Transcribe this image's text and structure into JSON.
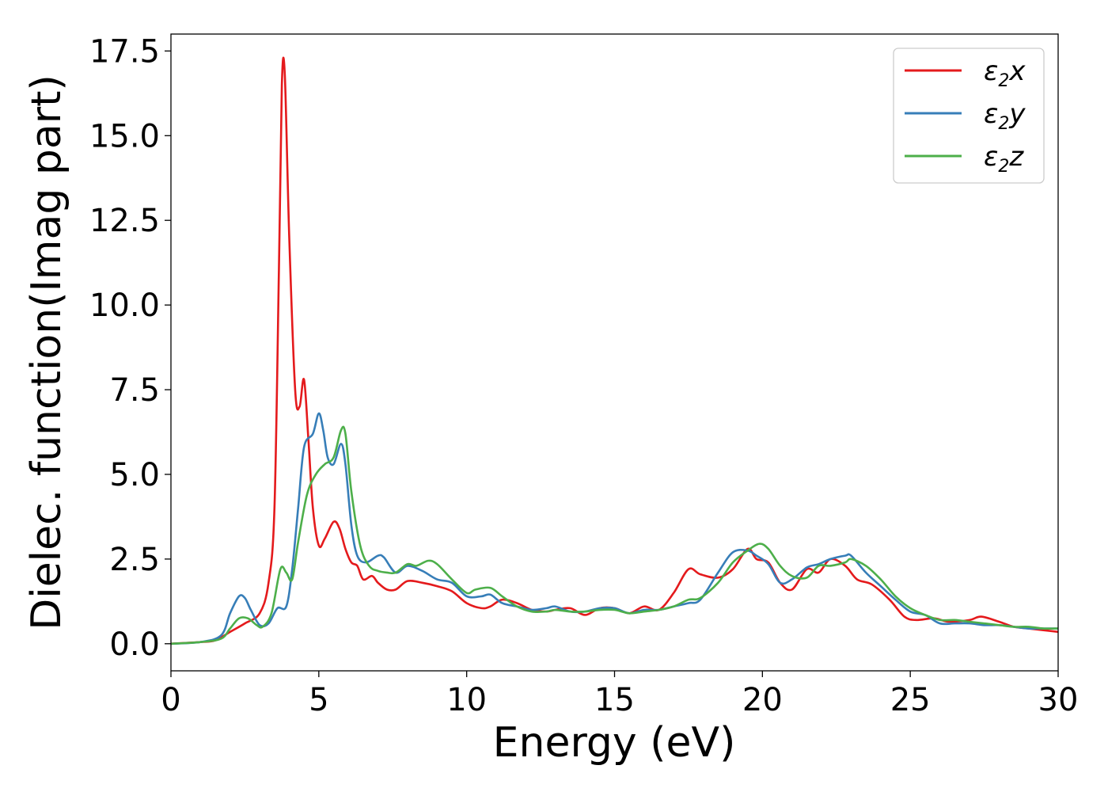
{
  "chart_data": {
    "type": "line",
    "xlabel": "Energy (eV)",
    "ylabel": "Dielec. function(Imag part)",
    "xlim": [
      0,
      30
    ],
    "ylim": [
      -0.8,
      18.0
    ],
    "xticks": [
      0,
      5,
      10,
      15,
      20,
      25,
      30
    ],
    "xtick_labels": [
      "0",
      "5",
      "10",
      "15",
      "20",
      "25",
      "30"
    ],
    "yticks": [
      0.0,
      2.5,
      5.0,
      7.5,
      10.0,
      12.5,
      15.0,
      17.5
    ],
    "ytick_labels": [
      "0.0",
      "2.5",
      "5.0",
      "7.5",
      "10.0",
      "12.5",
      "15.0",
      "17.5"
    ],
    "grid": false,
    "legend_position": "top-right",
    "series": [
      {
        "name": "ε2x",
        "name_base": "ε",
        "name_sub": "2",
        "name_tail": "x",
        "color": "#e41a1c",
        "x": [
          0,
          1,
          1.5,
          2,
          2.5,
          3,
          3.3,
          3.5,
          3.65,
          3.75,
          3.85,
          4.0,
          4.2,
          4.35,
          4.5,
          4.65,
          4.8,
          5.0,
          5.2,
          5.5,
          5.7,
          5.9,
          6.1,
          6.3,
          6.5,
          6.8,
          7.0,
          7.3,
          7.6,
          8.0,
          8.5,
          9.0,
          9.5,
          10.0,
          10.5,
          10.8,
          11.2,
          11.7,
          12.2,
          12.7,
          13.0,
          13.5,
          14.0,
          14.5,
          15.0,
          15.5,
          16.0,
          16.5,
          17.0,
          17.5,
          17.9,
          18.5,
          19.0,
          19.5,
          19.8,
          20.2,
          20.6,
          21.0,
          21.5,
          21.9,
          22.3,
          22.8,
          23.2,
          23.7,
          24.3,
          24.8,
          25.2,
          25.8,
          26.3,
          27.0,
          27.4,
          28.0,
          28.5,
          29.0,
          29.5,
          30.0
        ],
        "y": [
          0.0,
          0.05,
          0.1,
          0.35,
          0.6,
          0.9,
          1.8,
          4.0,
          11.0,
          16.5,
          16.8,
          12.0,
          7.5,
          7.0,
          7.8,
          6.0,
          4.0,
          2.9,
          3.1,
          3.6,
          3.4,
          2.8,
          2.4,
          2.3,
          1.9,
          2.0,
          1.8,
          1.6,
          1.6,
          1.85,
          1.8,
          1.7,
          1.55,
          1.2,
          1.05,
          1.1,
          1.3,
          1.2,
          1.0,
          0.95,
          1.0,
          1.05,
          0.85,
          1.05,
          1.05,
          0.9,
          1.1,
          1.0,
          1.5,
          2.2,
          2.05,
          1.95,
          2.2,
          2.8,
          2.5,
          2.4,
          1.8,
          1.6,
          2.2,
          2.1,
          2.5,
          2.3,
          1.9,
          1.75,
          1.3,
          0.8,
          0.7,
          0.75,
          0.65,
          0.7,
          0.8,
          0.65,
          0.5,
          0.45,
          0.4,
          0.35
        ]
      },
      {
        "name": "ε2y",
        "name_base": "ε",
        "name_sub": "2",
        "name_tail": "y",
        "color": "#377eb8",
        "x": [
          0,
          1,
          1.7,
          2.0,
          2.3,
          2.5,
          2.7,
          3.0,
          3.3,
          3.6,
          3.9,
          4.1,
          4.3,
          4.5,
          4.8,
          5.0,
          5.15,
          5.3,
          5.5,
          5.75,
          5.9,
          6.1,
          6.3,
          6.6,
          7.0,
          7.2,
          7.6,
          8.0,
          8.5,
          9.0,
          9.5,
          10.0,
          10.5,
          10.8,
          11.2,
          11.7,
          12.2,
          12.7,
          13.0,
          13.5,
          14.0,
          14.5,
          15.0,
          15.5,
          16.0,
          16.5,
          17.0,
          17.5,
          17.9,
          18.5,
          19.0,
          19.5,
          19.8,
          20.2,
          20.6,
          21.0,
          21.5,
          21.9,
          22.3,
          22.8,
          23.0,
          23.5,
          24.0,
          24.5,
          25.0,
          25.5,
          26.0,
          26.5,
          27.0,
          27.5,
          28.0,
          28.5,
          29.0,
          29.5,
          30.0
        ],
        "y": [
          0.0,
          0.05,
          0.25,
          0.9,
          1.4,
          1.35,
          1.0,
          0.55,
          0.6,
          1.05,
          1.1,
          2.2,
          4.0,
          5.8,
          6.2,
          6.8,
          6.3,
          5.5,
          5.3,
          5.9,
          5.3,
          3.5,
          2.6,
          2.4,
          2.6,
          2.55,
          2.1,
          2.3,
          2.15,
          1.9,
          1.8,
          1.4,
          1.4,
          1.45,
          1.2,
          1.1,
          1.0,
          1.05,
          1.1,
          0.95,
          0.95,
          1.05,
          1.05,
          0.9,
          1.0,
          1.0,
          1.1,
          1.2,
          1.3,
          2.1,
          2.7,
          2.75,
          2.6,
          2.35,
          1.8,
          1.9,
          2.25,
          2.35,
          2.5,
          2.6,
          2.6,
          2.1,
          1.7,
          1.3,
          0.95,
          0.85,
          0.6,
          0.6,
          0.6,
          0.55,
          0.55,
          0.5,
          0.45,
          0.45,
          0.45
        ]
      },
      {
        "name": "ε2z",
        "name_base": "ε",
        "name_sub": "2",
        "name_tail": "z",
        "color": "#4daf4a",
        "x": [
          0,
          1,
          1.7,
          2.0,
          2.3,
          2.6,
          2.9,
          3.1,
          3.4,
          3.7,
          3.9,
          4.1,
          4.3,
          4.6,
          4.9,
          5.2,
          5.5,
          5.75,
          5.9,
          6.1,
          6.4,
          6.7,
          7.0,
          7.3,
          7.6,
          8.0,
          8.3,
          8.7,
          9.0,
          9.5,
          10.0,
          10.3,
          10.8,
          11.2,
          11.7,
          12.2,
          12.7,
          13.0,
          13.5,
          14.0,
          14.5,
          15.0,
          15.5,
          16.0,
          16.5,
          17.0,
          17.5,
          17.9,
          18.5,
          19.0,
          19.5,
          19.9,
          20.2,
          20.6,
          21.0,
          21.5,
          21.9,
          22.3,
          22.8,
          23.0,
          23.5,
          24.0,
          24.5,
          25.0,
          25.5,
          26.0,
          26.5,
          27.0,
          27.5,
          28.0,
          28.5,
          29.0,
          29.5,
          30.0
        ],
        "y": [
          0.0,
          0.05,
          0.15,
          0.45,
          0.75,
          0.75,
          0.55,
          0.5,
          0.9,
          2.2,
          2.1,
          1.9,
          3.0,
          4.4,
          5.0,
          5.3,
          5.5,
          6.3,
          6.2,
          4.5,
          2.9,
          2.3,
          2.15,
          2.1,
          2.1,
          2.35,
          2.3,
          2.45,
          2.35,
          1.9,
          1.5,
          1.6,
          1.65,
          1.4,
          1.1,
          0.95,
          0.95,
          1.0,
          0.95,
          0.95,
          1.0,
          1.0,
          0.9,
          0.95,
          1.0,
          1.1,
          1.3,
          1.35,
          1.8,
          2.4,
          2.75,
          2.95,
          2.8,
          2.3,
          2.0,
          1.95,
          2.3,
          2.3,
          2.4,
          2.5,
          2.3,
          1.9,
          1.4,
          1.05,
          0.85,
          0.7,
          0.7,
          0.65,
          0.6,
          0.55,
          0.5,
          0.5,
          0.45,
          0.45
        ]
      }
    ]
  }
}
